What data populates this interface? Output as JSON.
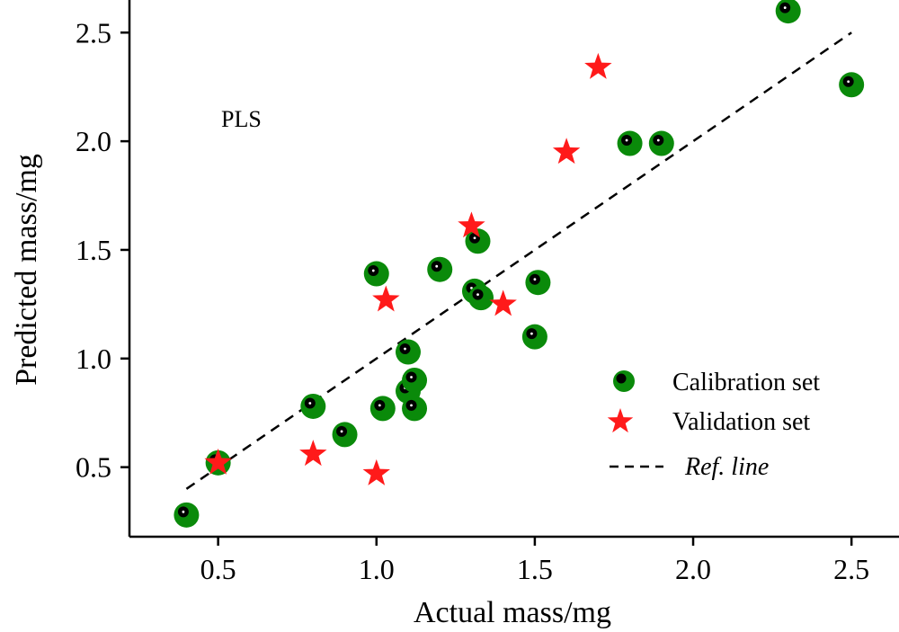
{
  "chart_data": {
    "type": "scatter",
    "annotation": "PLS",
    "xlabel": "Actual mass/mg",
    "ylabel": "Predicted mass/mg",
    "xlim": [
      0.22,
      2.65
    ],
    "ylim": [
      0.18,
      2.65
    ],
    "xticks": [
      0.5,
      1.0,
      1.5,
      2.0,
      2.5
    ],
    "xtick_labels": [
      "0.5",
      "1.0",
      "1.5",
      "2.0",
      "2.5"
    ],
    "yticks": [
      0.5,
      1.0,
      1.5,
      2.0,
      2.5
    ],
    "ytick_labels": [
      "0.5",
      "1.0",
      "1.5",
      "2.0",
      "2.5"
    ],
    "legend_position": "bottom-right",
    "colors": {
      "calibration_outer": "#0a8a0a",
      "calibration_inner": "#000000",
      "validation": "#ff1a1a",
      "ref_line": "#000000"
    },
    "series": [
      {
        "name": "Calibration set",
        "marker": "circle",
        "points": [
          [
            0.4,
            0.28
          ],
          [
            0.5,
            0.52
          ],
          [
            0.8,
            0.78
          ],
          [
            0.9,
            0.65
          ],
          [
            1.0,
            1.39
          ],
          [
            1.02,
            0.77
          ],
          [
            1.1,
            1.03
          ],
          [
            1.1,
            0.85
          ],
          [
            1.12,
            0.9
          ],
          [
            1.12,
            0.77
          ],
          [
            1.2,
            1.41
          ],
          [
            1.31,
            1.31
          ],
          [
            1.32,
            1.54
          ],
          [
            1.33,
            1.28
          ],
          [
            1.5,
            1.1
          ],
          [
            1.51,
            1.35
          ],
          [
            1.8,
            1.99
          ],
          [
            1.9,
            1.99
          ],
          [
            2.3,
            2.6
          ],
          [
            2.5,
            2.26
          ]
        ]
      },
      {
        "name": "Validation set",
        "marker": "star",
        "points": [
          [
            0.5,
            0.52
          ],
          [
            0.8,
            0.56
          ],
          [
            1.0,
            0.47
          ],
          [
            1.03,
            1.27
          ],
          [
            1.3,
            1.61
          ],
          [
            1.4,
            1.25
          ],
          [
            1.6,
            1.95
          ],
          [
            1.7,
            2.34
          ]
        ]
      },
      {
        "name": "Ref. line",
        "marker": "dashed-line",
        "points": [
          [
            0.4,
            0.4
          ],
          [
            2.5,
            2.5
          ]
        ]
      }
    ]
  }
}
